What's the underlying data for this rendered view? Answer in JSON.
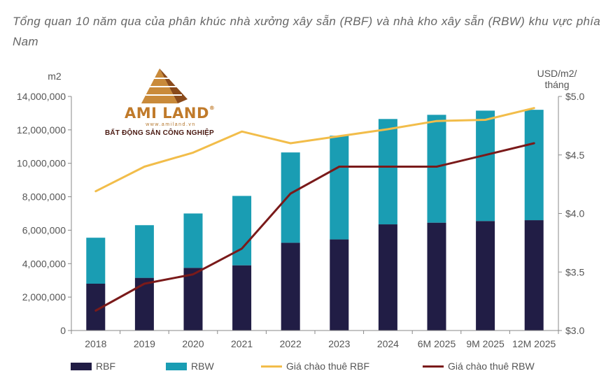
{
  "title": "Tổng quan 10 năm qua của phân khúc nhà xưởng xây sẵn (RBF) và nhà kho xây sẵn (RBW) khu vực phía Nam",
  "logo": {
    "name": "AMI LAND",
    "registered": "®",
    "url": "www.amiland.vn",
    "tagline": "BẤT ĐỘNG SẢN CÔNG NGHIỆP"
  },
  "colors": {
    "rbf": "#211d45",
    "rbw": "#1a9db3",
    "rbf_price": "#f2bd4a",
    "rbw_price": "#7a1a1a",
    "axis": "#888888",
    "text": "#555555"
  },
  "chart_data": {
    "type": "bar",
    "stacked": true,
    "categories": [
      "2018",
      "2019",
      "2020",
      "2021",
      "2022",
      "2023",
      "2024",
      "6M 2025",
      "9M 2025",
      "12M 2025"
    ],
    "left_axis": {
      "unit": "m2",
      "ylim": [
        0,
        14000000
      ],
      "ticks": [
        "0",
        "2,000,000",
        "4,000,000",
        "6,000,000",
        "8,000,000",
        "10,000,000",
        "12,000,000",
        "14,000,000"
      ]
    },
    "right_axis": {
      "unit": "USD/m2/\ntháng",
      "unit_lines": [
        "USD/m2/",
        "tháng"
      ],
      "ylim": [
        3.0,
        5.0
      ],
      "ticks": [
        "$3.0",
        "$3.5",
        "$4.0",
        "$4.5",
        "$5.0"
      ]
    },
    "series": [
      {
        "name": "RBF",
        "type": "bar",
        "axis": "left",
        "values": [
          2800000,
          3150000,
          3750000,
          3900000,
          5250000,
          5450000,
          6350000,
          6450000,
          6550000,
          6600000
        ]
      },
      {
        "name": "RBW",
        "type": "bar",
        "axis": "left",
        "values": [
          2750000,
          3150000,
          3250000,
          4150000,
          5400000,
          6200000,
          6300000,
          6450000,
          6600000,
          6600000
        ]
      },
      {
        "name": "Giá chào thuê RBF",
        "type": "line",
        "axis": "right",
        "values": [
          4.19,
          4.4,
          4.52,
          4.7,
          4.6,
          4.66,
          4.72,
          4.79,
          4.8,
          4.9
        ]
      },
      {
        "name": "Giá chào thuê RBW",
        "type": "line",
        "axis": "right",
        "values": [
          3.17,
          3.4,
          3.48,
          3.7,
          4.17,
          4.4,
          4.4,
          4.4,
          4.5,
          4.6
        ]
      }
    ],
    "legend_position": "bottom",
    "grid": false
  }
}
